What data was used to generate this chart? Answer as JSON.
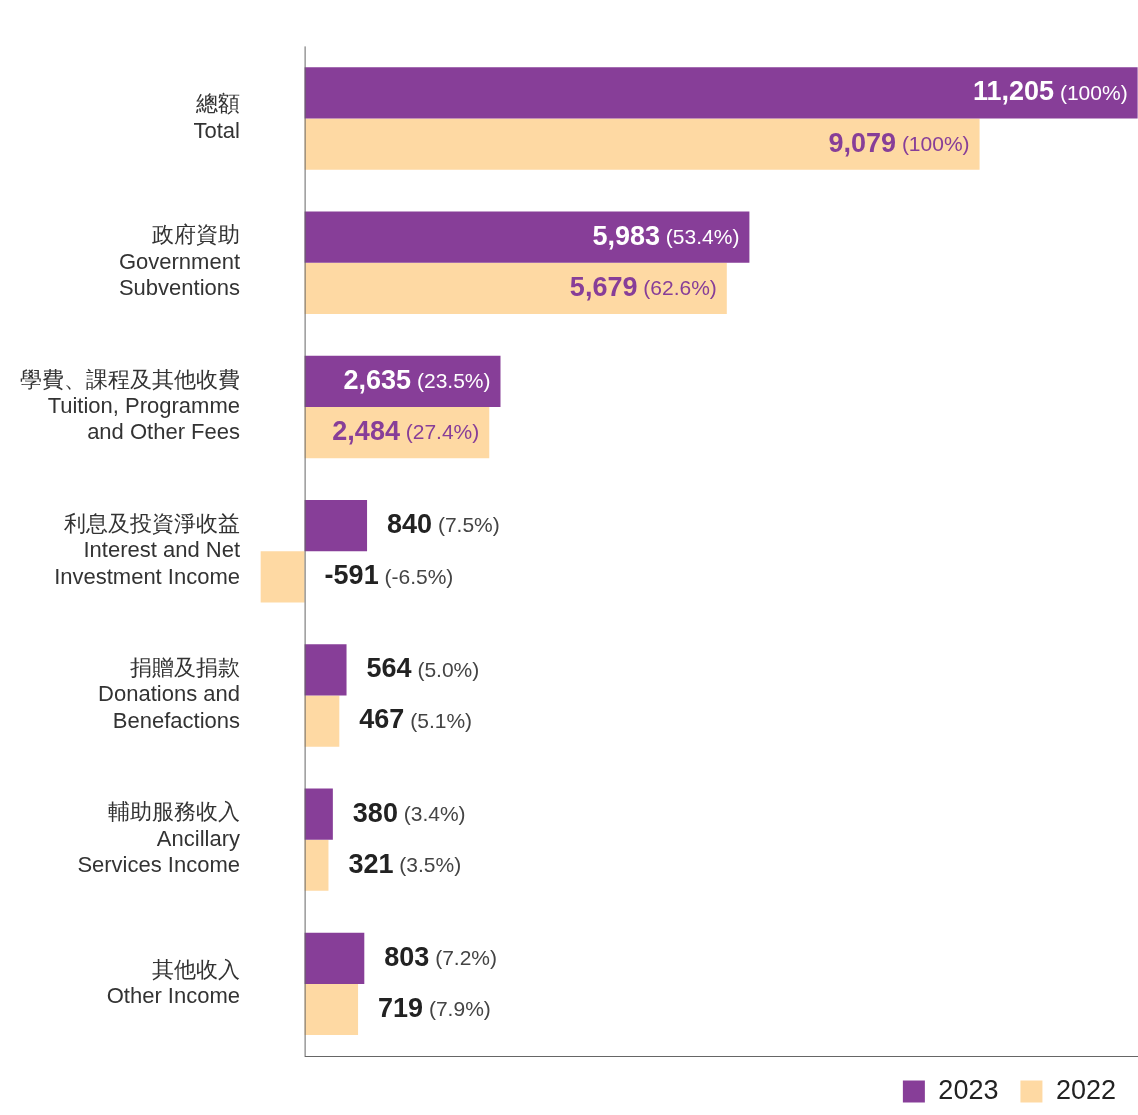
{
  "chart_data": {
    "type": "bar",
    "orientation": "horizontal",
    "categories": [
      "總額\nTotal",
      "政府資助\nGovernment\nSubventions",
      "學費、課程及其他收費\nTuition, Programme\nand Other Fees",
      "利息及投資淨收益\nInterest and Net\nInvestment Income",
      "捐贈及捐款\nDonations and\nBenefactions",
      "輔助服務收入\nAncillary\nServices Income",
      "其他收入\nOther Income"
    ],
    "series": [
      {
        "name": "2023",
        "color": "#873e98",
        "values": [
          11205,
          5983,
          2635,
          840,
          564,
          380,
          803
        ],
        "value_labels": [
          "11,205 (100%)",
          "5,983 (53.4%)",
          "2,635 (23.5%)",
          "840 (7.5%)",
          "564 (5.0%)",
          "380 (3.4%)",
          "803 (7.2%)"
        ]
      },
      {
        "name": "2022",
        "color": "#fed9a3",
        "values": [
          9079,
          5679,
          2484,
          -591,
          467,
          321,
          719
        ],
        "value_labels": [
          "9,079 (100%)",
          "5,679 (62.6%)",
          "2,484 (27.4%)",
          "-591 (-6.5%)",
          "467 (5.1%)",
          "321 (3.5%)",
          "719 (7.9%)"
        ]
      }
    ],
    "xlim": [
      -600,
      11210
    ],
    "tick_labels": "y",
    "grid": false,
    "legend": "bottom right"
  }
}
